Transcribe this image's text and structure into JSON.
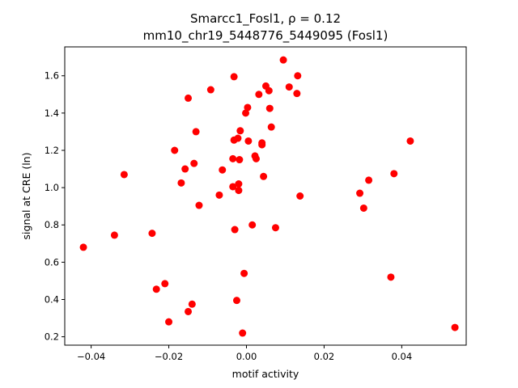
{
  "chart_data": {
    "type": "scatter",
    "title_line1": "Smarcc1_Fosl1, ρ = 0.12",
    "title_line2": "mm10_chr19_5448776_5449095 (Fosl1)",
    "xlabel": "motif activity",
    "ylabel": "signal at CRE (ln)",
    "xlim": [
      -0.0468,
      0.0566
    ],
    "ylim": [
      0.155,
      1.755
    ],
    "xticks": [
      -0.04,
      -0.02,
      0.0,
      0.02,
      0.04
    ],
    "xtick_labels": [
      "−0.04",
      "−0.02",
      "0.00",
      "0.02",
      "0.04"
    ],
    "yticks": [
      0.2,
      0.4,
      0.6,
      0.8,
      1.0,
      1.2,
      1.4,
      1.6
    ],
    "ytick_labels": [
      "0.2",
      "0.4",
      "0.6",
      "0.8",
      "1.0",
      "1.2",
      "1.4",
      "1.6"
    ],
    "grid": false,
    "marker_color": "#ff0000",
    "points": [
      {
        "x": -0.042,
        "y": 0.68
      },
      {
        "x": -0.034,
        "y": 0.745
      },
      {
        "x": -0.0315,
        "y": 1.07
      },
      {
        "x": -0.0243,
        "y": 0.755
      },
      {
        "x": -0.0232,
        "y": 0.455
      },
      {
        "x": -0.021,
        "y": 0.485
      },
      {
        "x": -0.02,
        "y": 0.28
      },
      {
        "x": -0.0185,
        "y": 1.2
      },
      {
        "x": -0.0168,
        "y": 1.025
      },
      {
        "x": -0.0158,
        "y": 1.1
      },
      {
        "x": -0.015,
        "y": 1.48
      },
      {
        "x": -0.015,
        "y": 0.335
      },
      {
        "x": -0.014,
        "y": 0.375
      },
      {
        "x": -0.0135,
        "y": 1.13
      },
      {
        "x": -0.013,
        "y": 1.3
      },
      {
        "x": -0.0122,
        "y": 0.905
      },
      {
        "x": -0.0092,
        "y": 1.525
      },
      {
        "x": -0.007,
        "y": 0.96
      },
      {
        "x": -0.0062,
        "y": 1.095
      },
      {
        "x": -0.0035,
        "y": 1.005
      },
      {
        "x": -0.0035,
        "y": 1.155
      },
      {
        "x": -0.0032,
        "y": 1.255
      },
      {
        "x": -0.0032,
        "y": 1.595
      },
      {
        "x": -0.003,
        "y": 0.775
      },
      {
        "x": -0.0025,
        "y": 0.395
      },
      {
        "x": -0.0022,
        "y": 1.265
      },
      {
        "x": -0.002,
        "y": 0.985
      },
      {
        "x": -0.002,
        "y": 1.02
      },
      {
        "x": -0.0018,
        "y": 1.15
      },
      {
        "x": -0.0016,
        "y": 1.305
      },
      {
        "x": -0.001,
        "y": 0.22
      },
      {
        "x": -0.0006,
        "y": 0.54
      },
      {
        "x": -0.0002,
        "y": 1.4
      },
      {
        "x": 0.0003,
        "y": 1.43
      },
      {
        "x": 0.0005,
        "y": 1.25
      },
      {
        "x": 0.0015,
        "y": 0.8
      },
      {
        "x": 0.0022,
        "y": 1.17
      },
      {
        "x": 0.0025,
        "y": 1.155
      },
      {
        "x": 0.0032,
        "y": 1.5
      },
      {
        "x": 0.004,
        "y": 1.23
      },
      {
        "x": 0.004,
        "y": 1.24
      },
      {
        "x": 0.0044,
        "y": 1.06
      },
      {
        "x": 0.005,
        "y": 1.545
      },
      {
        "x": 0.0058,
        "y": 1.52
      },
      {
        "x": 0.006,
        "y": 1.425
      },
      {
        "x": 0.0064,
        "y": 1.325
      },
      {
        "x": 0.0075,
        "y": 0.785
      },
      {
        "x": 0.0095,
        "y": 1.685
      },
      {
        "x": 0.011,
        "y": 1.54
      },
      {
        "x": 0.013,
        "y": 1.505
      },
      {
        "x": 0.0132,
        "y": 1.6
      },
      {
        "x": 0.0138,
        "y": 0.955
      },
      {
        "x": 0.0292,
        "y": 0.97
      },
      {
        "x": 0.0302,
        "y": 0.89
      },
      {
        "x": 0.0315,
        "y": 1.04
      },
      {
        "x": 0.0372,
        "y": 0.52
      },
      {
        "x": 0.038,
        "y": 1.075
      },
      {
        "x": 0.0422,
        "y": 1.25
      },
      {
        "x": 0.0537,
        "y": 0.25
      }
    ]
  }
}
